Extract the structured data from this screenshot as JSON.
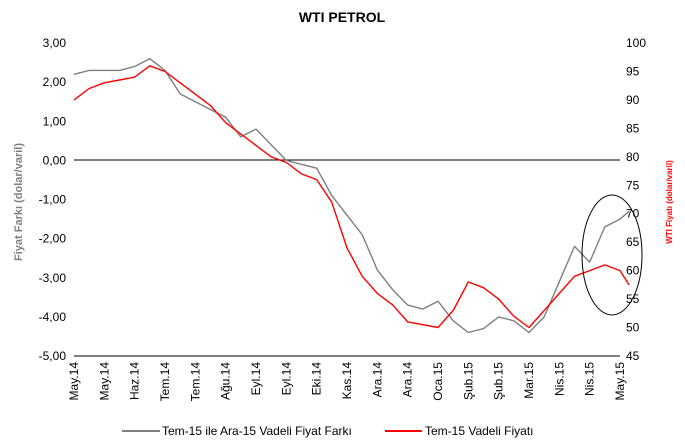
{
  "chart_data": {
    "type": "line",
    "title": "WTI PETROL",
    "ylabel_left": "Fiyat Farkı (dolar/varil)",
    "ylabel_right": "WTI Fiyatı (dolar/varil)",
    "ylim_left": [
      -5,
      3
    ],
    "ylim_right": [
      45,
      100
    ],
    "yticks_left": [
      "3,00",
      "2,00",
      "1,00",
      "0,00",
      "-1,00",
      "-2,00",
      "-3,00",
      "-4,00",
      "-5,00"
    ],
    "yticks_right": [
      "100",
      "95",
      "90",
      "85",
      "80",
      "75",
      "70",
      "65",
      "60",
      "55",
      "50",
      "45"
    ],
    "xticks": [
      "May.14",
      "May.14",
      "Haz.14",
      "Tem.14",
      "Tem.14",
      "Ağu.14",
      "Eyl.14",
      "Eyl.14",
      "Eki.14",
      "Kas.14",
      "Ara.14",
      "Ara.14",
      "Oca.15",
      "Şub.15",
      "Şub.15",
      "Mar.15",
      "Nis.15",
      "Nis.15",
      "May.15"
    ],
    "x": [
      0,
      0.5,
      1,
      1.5,
      2,
      2.5,
      3,
      3.5,
      4,
      4.5,
      5,
      5.5,
      6,
      6.5,
      7,
      7.5,
      8,
      8.5,
      9,
      9.5,
      10,
      10.5,
      11,
      11.5,
      12,
      12.5,
      13,
      13.5,
      14,
      14.5,
      15,
      15.5,
      16,
      16.5,
      17,
      17.5,
      18,
      18.3
    ],
    "legend_position": "bottom",
    "series": [
      {
        "name": "Tem-15 ile Ara-15 Vadeli Fiyat Farkı",
        "axis": "left",
        "color": "#7f7f7f",
        "values": [
          2.2,
          2.3,
          2.3,
          2.3,
          2.4,
          2.6,
          2.3,
          1.7,
          1.5,
          1.3,
          1.1,
          0.6,
          0.8,
          0.4,
          0.0,
          -0.1,
          -0.2,
          -0.9,
          -1.4,
          -1.9,
          -2.8,
          -3.3,
          -3.7,
          -3.8,
          -3.6,
          -4.1,
          -4.4,
          -4.3,
          -4.0,
          -4.1,
          -4.4,
          -4.0,
          -3.1,
          -2.2,
          -2.6,
          -1.7,
          -1.5,
          -1.3
        ]
      },
      {
        "name": "Tem-15 Vadeli Fiyatı",
        "axis": "right",
        "color": "#ff0000",
        "values": [
          90,
          92,
          93,
          93.5,
          94,
          96,
          95,
          93,
          91,
          89,
          86,
          84,
          82,
          80,
          79,
          77,
          76,
          72,
          64,
          59,
          56,
          54,
          51,
          50.5,
          50,
          53,
          58,
          57,
          55,
          52,
          50,
          53,
          56,
          59,
          60,
          61,
          60,
          57.5
        ]
      }
    ]
  }
}
